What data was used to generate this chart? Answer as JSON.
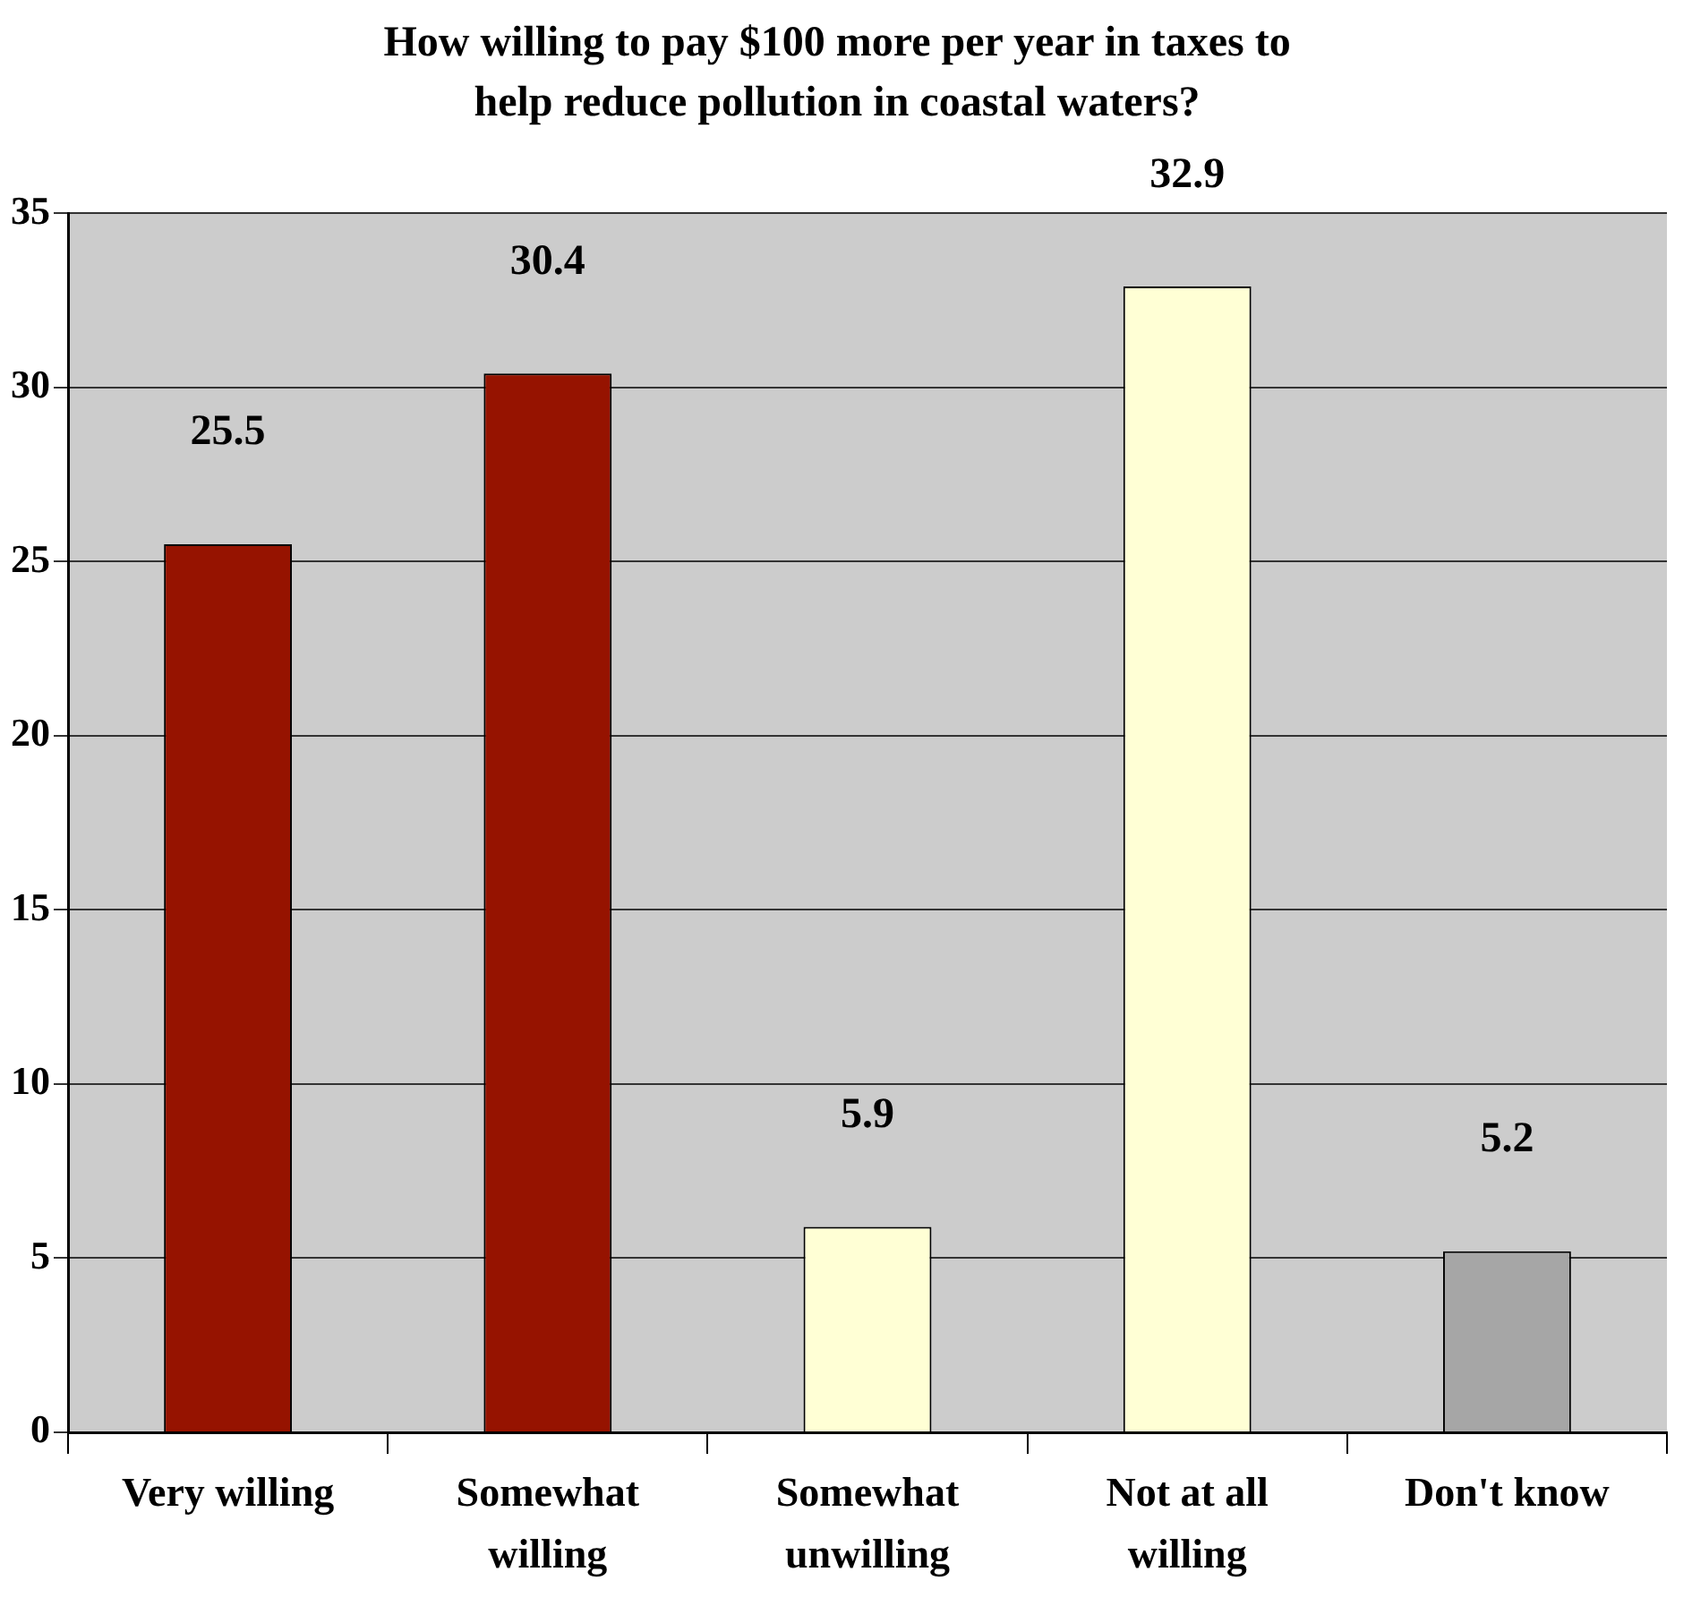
{
  "chart_data": {
    "type": "bar",
    "title": "How willing to pay $100 more per year in taxes to help reduce pollution in coastal waters?",
    "categories": [
      "Very willing",
      "Somewhat willing",
      "Somewhat unwilling",
      "Not at all willing",
      "Don't know"
    ],
    "values": [
      25.5,
      30.4,
      5.9,
      32.9,
      5.2
    ],
    "colors": [
      "#961300",
      "#961300",
      "#ffffd5",
      "#ffffd5",
      "#a6a6a6"
    ],
    "ylim": [
      0,
      35
    ],
    "yticks": [
      0,
      5,
      10,
      15,
      20,
      25,
      30,
      35
    ],
    "grid": "y",
    "data_labels": true
  }
}
